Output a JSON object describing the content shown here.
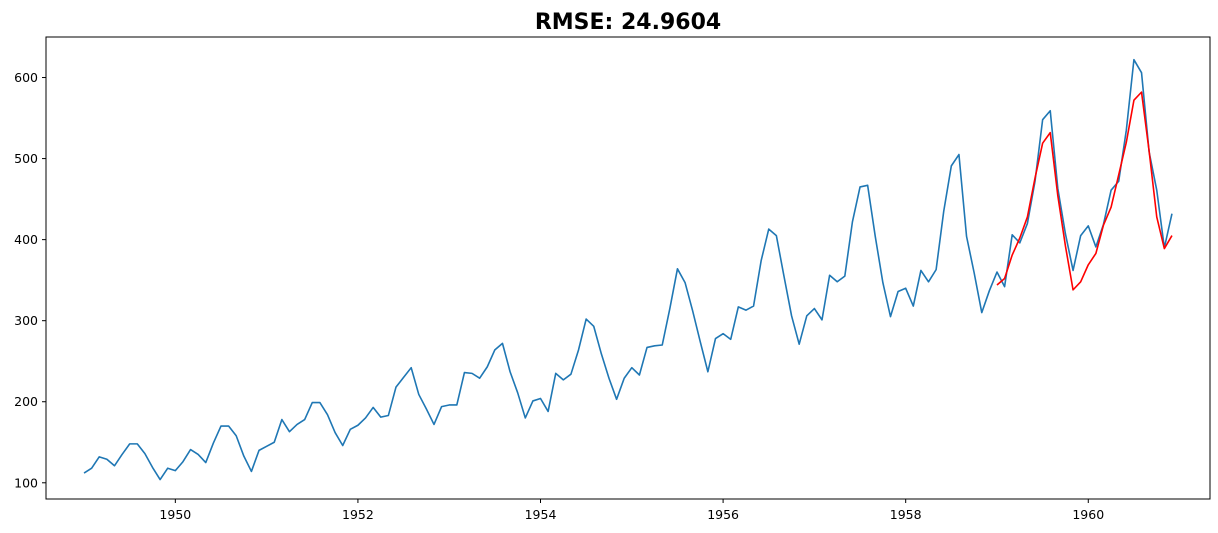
{
  "chart_data": {
    "type": "line",
    "title": "RMSE: 24.9604",
    "xlabel": "",
    "ylabel": "",
    "x_axis": "date",
    "xlim": [
      "1948-08",
      "1961-05"
    ],
    "ylim": [
      80,
      650
    ],
    "x_ticks": [
      "1950",
      "1952",
      "1954",
      "1956",
      "1958",
      "1960"
    ],
    "y_ticks": [
      100,
      200,
      300,
      400,
      500,
      600
    ],
    "grid": false,
    "legend": "none",
    "series": [
      {
        "color": "#1f77b4",
        "start": "1949-01",
        "frequency": "monthly",
        "values": [
          112,
          118,
          132,
          129,
          121,
          135,
          148,
          148,
          136,
          119,
          104,
          118,
          115,
          126,
          141,
          135,
          125,
          149,
          170,
          170,
          158,
          133,
          114,
          140,
          145,
          150,
          178,
          163,
          172,
          178,
          199,
          199,
          184,
          162,
          146,
          166,
          171,
          180,
          193,
          181,
          183,
          218,
          230,
          242,
          209,
          191,
          172,
          194,
          196,
          196,
          236,
          235,
          229,
          243,
          264,
          272,
          237,
          211,
          180,
          201,
          204,
          188,
          235,
          227,
          234,
          264,
          302,
          293,
          259,
          229,
          203,
          229,
          242,
          233,
          267,
          269,
          270,
          315,
          364,
          347,
          312,
          274,
          237,
          278,
          284,
          277,
          317,
          313,
          318,
          374,
          413,
          405,
          355,
          306,
          271,
          306,
          315,
          301,
          356,
          348,
          355,
          422,
          465,
          467,
          404,
          347,
          305,
          336,
          340,
          318,
          362,
          348,
          363,
          435,
          491,
          505,
          404,
          359,
          310,
          337,
          360,
          342,
          406,
          396,
          420,
          472,
          548,
          559,
          463,
          407,
          362,
          405,
          417,
          391,
          419,
          461,
          472,
          535,
          622,
          606,
          508,
          461,
          390,
          432
        ]
      },
      {
        "color": "#ff0000",
        "start": "1959-01",
        "frequency": "monthly",
        "values": [
          344,
          352,
          381,
          402,
          428,
          476,
          519,
          532,
          454,
          392,
          338,
          348,
          369,
          383,
          418,
          440,
          480,
          520,
          572,
          582,
          509,
          428,
          389,
          405
        ]
      }
    ]
  }
}
